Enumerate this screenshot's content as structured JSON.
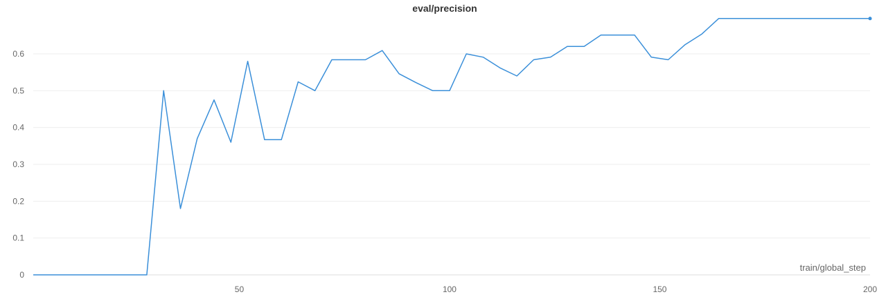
{
  "chart_data": {
    "type": "line",
    "title": "eval/precision",
    "xlabel": "train/global_step",
    "ylabel": "",
    "xlim": [
      1,
      200
    ],
    "ylim": [
      0,
      0.7
    ],
    "grid": true,
    "x_ticks": [
      50,
      100,
      150,
      200
    ],
    "y_ticks": [
      0,
      0.1,
      0.2,
      0.3,
      0.4,
      0.5,
      0.6
    ],
    "series_color": "#3a8fd9",
    "series": [
      {
        "x": [
          1,
          4,
          8,
          12,
          16,
          20,
          24,
          28,
          32,
          36,
          40,
          44,
          48,
          52,
          56,
          60,
          64,
          68,
          72,
          76,
          80,
          84,
          88,
          92,
          96,
          100,
          104,
          108,
          112,
          116,
          120,
          124,
          128,
          132,
          136,
          140,
          144,
          148,
          152,
          156,
          160,
          164,
          168,
          172,
          176,
          180,
          184,
          188,
          192,
          196,
          200
        ],
        "values": [
          0,
          0,
          0,
          0,
          0,
          0,
          0,
          0,
          0.5,
          0.18,
          0.37,
          0.475,
          0.36,
          0.58,
          0.367,
          0.367,
          0.524,
          0.5,
          0.584,
          0.584,
          0.584,
          0.609,
          0.546,
          0.522,
          0.5,
          0.5,
          0.6,
          0.591,
          0.562,
          0.54,
          0.584,
          0.591,
          0.62,
          0.62,
          0.651,
          0.651,
          0.651,
          0.591,
          0.584,
          0.625,
          0.654,
          0.696,
          0.696,
          0.696,
          0.696,
          0.696,
          0.696,
          0.696,
          0.696,
          0.696,
          0.696
        ]
      }
    ]
  }
}
